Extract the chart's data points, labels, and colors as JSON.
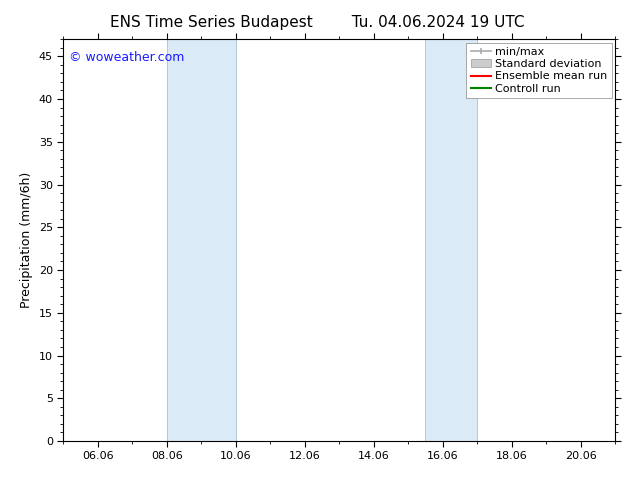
{
  "title_left": "ENS Time Series Budapest",
  "title_right": "Tu. 04.06.2024 19 UTC",
  "ylabel": "Precipitation (mm/6h)",
  "background_color": "#ffffff",
  "plot_bg_color": "#ffffff",
  "ylim": [
    0,
    47
  ],
  "yticks": [
    0,
    5,
    10,
    15,
    20,
    25,
    30,
    35,
    40,
    45
  ],
  "xtick_labels": [
    "06.06",
    "08.06",
    "10.06",
    "12.06",
    "14.06",
    "16.06",
    "18.06",
    "20.06"
  ],
  "xtick_positions": [
    6,
    8,
    10,
    12,
    14,
    16,
    18,
    20
  ],
  "xlim": [
    5,
    21
  ],
  "shaded_regions": [
    {
      "xmin": 8.0,
      "xmax": 10.0,
      "color": "#daeaf7"
    },
    {
      "xmin": 15.5,
      "xmax": 17.0,
      "color": "#daeaf7"
    }
  ],
  "watermark_text": "© woweather.com",
  "watermark_color": "#1a1aff",
  "legend_items": [
    {
      "label": "min/max",
      "color": "#aaaaaa",
      "type": "minmax"
    },
    {
      "label": "Standard deviation",
      "color": "#cccccc",
      "type": "bar"
    },
    {
      "label": "Ensemble mean run",
      "color": "#ff0000",
      "type": "line"
    },
    {
      "label": "Controll run",
      "color": "#008000",
      "type": "line"
    }
  ],
  "title_fontsize": 11,
  "axis_fontsize": 9,
  "tick_fontsize": 8,
  "watermark_fontsize": 9,
  "legend_fontsize": 8
}
